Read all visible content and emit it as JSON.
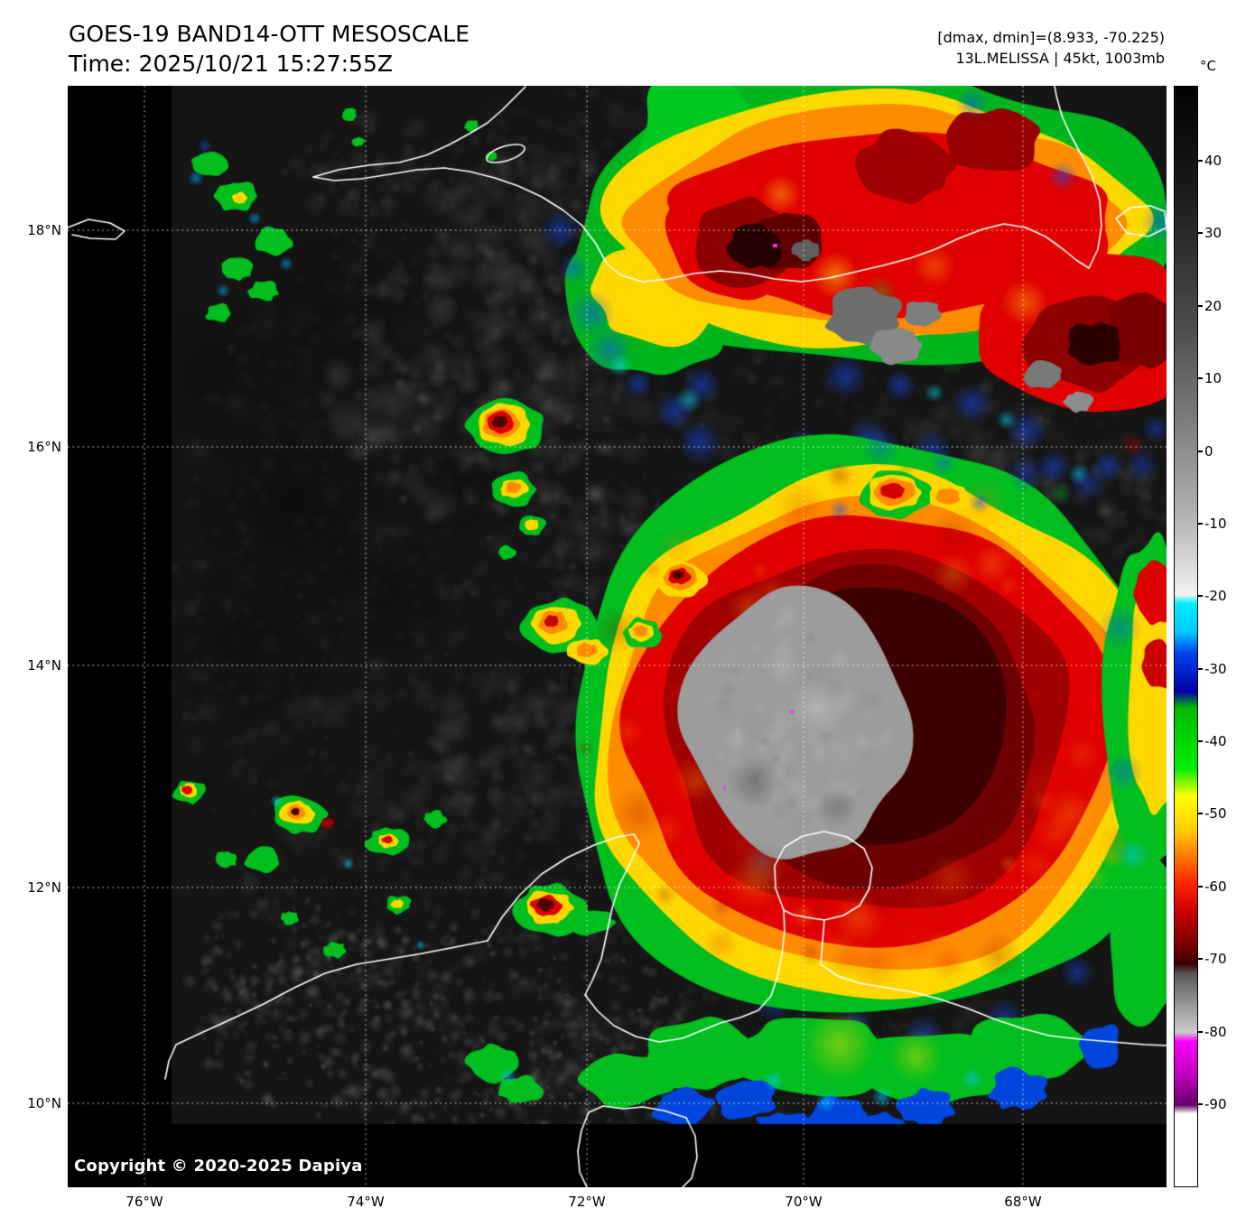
{
  "header": {
    "title": "GOES-19 BAND14-OTT MESOSCALE",
    "time_line": "Time: 2025/10/21 15:27:55Z"
  },
  "info": {
    "range_line": "[dmax, dmin]=(8.933, -70.225)",
    "storm_line": "13L.MELISSA | 45kt, 1003mb"
  },
  "colorbar": {
    "unit": "°C",
    "ticks": [
      "40",
      "30",
      "20",
      "10",
      "0",
      "-10",
      "-20",
      "-30",
      "-40",
      "-50",
      "-60",
      "-70",
      "-80",
      "-90"
    ]
  },
  "axes": {
    "lat_labels": [
      "18°N",
      "16°N",
      "14°N",
      "12°N",
      "10°N"
    ],
    "lon_labels": [
      "76°W",
      "74°W",
      "72°W",
      "70°W",
      "68°W"
    ]
  },
  "map": {
    "copyright": "Copyright © 2020-2025 Dapiya"
  }
}
